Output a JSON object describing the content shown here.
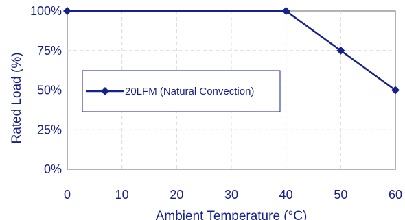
{
  "chart_data": {
    "type": "line",
    "xlabel": "Ambient Temperature (°C)",
    "ylabel": "Rated Load (%)",
    "xlim": [
      0,
      60
    ],
    "ylim": [
      0,
      100
    ],
    "x_ticks": [
      "0",
      "10",
      "20",
      "30",
      "40",
      "50",
      "60"
    ],
    "y_ticks": [
      "0%",
      "25%",
      "50%",
      "75%",
      "100%"
    ],
    "grid": true,
    "legend_position": "center-left",
    "series": [
      {
        "name": "20LFM (Natural Convection)",
        "x": [
          0,
          40,
          50,
          60
        ],
        "y": [
          100,
          100,
          75,
          50
        ],
        "color": "#17218c",
        "marker": "diamond"
      }
    ]
  }
}
